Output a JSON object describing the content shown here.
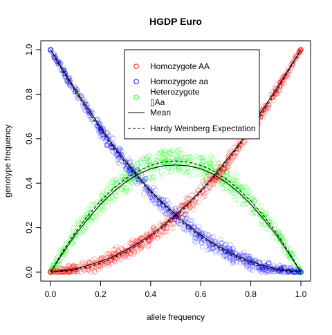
{
  "chart_data": {
    "type": "scatter",
    "title": "HGDP Euro",
    "xlabel": "allele frequency",
    "ylabel": "genotype frequency",
    "xlim": [
      0,
      1
    ],
    "ylim": [
      0,
      1
    ],
    "x_ticks": [
      "0.0",
      "0.2",
      "0.4",
      "0.6",
      "0.8",
      "1.0"
    ],
    "y_ticks": [
      "0.0",
      "0.2",
      "0.4",
      "0.6",
      "0.8",
      "1.0"
    ],
    "grid": false,
    "legend_position": "top-right",
    "series": [
      {
        "name": "Homozygote AA",
        "color": "#ff0000",
        "marker": "open-circle",
        "x": [
          0,
          0.05,
          0.1,
          0.15,
          0.2,
          0.25,
          0.3,
          0.35,
          0.4,
          0.45,
          0.5,
          0.55,
          0.6,
          0.65,
          0.7,
          0.75,
          0.8,
          0.85,
          0.9,
          0.95,
          1
        ],
        "values": [
          0,
          0.005,
          0.012,
          0.025,
          0.042,
          0.067,
          0.093,
          0.125,
          0.162,
          0.205,
          0.25,
          0.302,
          0.357,
          0.42,
          0.49,
          0.562,
          0.642,
          0.728,
          0.812,
          0.905,
          1
        ]
      },
      {
        "name": "Homozygote aa",
        "color": "#0000ff",
        "marker": "open-circle",
        "x": [
          0,
          0.05,
          0.1,
          0.15,
          0.2,
          0.25,
          0.3,
          0.35,
          0.4,
          0.45,
          0.5,
          0.55,
          0.6,
          0.65,
          0.7,
          0.75,
          0.8,
          0.85,
          0.9,
          0.95,
          1
        ],
        "values": [
          1,
          0.905,
          0.812,
          0.728,
          0.642,
          0.562,
          0.49,
          0.42,
          0.357,
          0.302,
          0.25,
          0.205,
          0.162,
          0.125,
          0.093,
          0.067,
          0.042,
          0.025,
          0.012,
          0.005,
          0
        ]
      },
      {
        "name": "Heterozygote",
        "name_line2": "▯Aa",
        "color": "#00ff00",
        "marker": "open-circle",
        "x": [
          0,
          0.05,
          0.1,
          0.15,
          0.2,
          0.25,
          0.3,
          0.35,
          0.4,
          0.45,
          0.5,
          0.55,
          0.6,
          0.65,
          0.7,
          0.75,
          0.8,
          0.85,
          0.9,
          0.95,
          1
        ],
        "values": [
          0,
          0.09,
          0.176,
          0.247,
          0.316,
          0.371,
          0.417,
          0.455,
          0.481,
          0.493,
          0.5,
          0.493,
          0.481,
          0.455,
          0.417,
          0.371,
          0.316,
          0.247,
          0.176,
          0.09,
          0
        ]
      }
    ],
    "lines": [
      {
        "name": "Mean",
        "style": "solid",
        "color": "#000000",
        "x": [
          0,
          0.05,
          0.1,
          0.15,
          0.2,
          0.25,
          0.3,
          0.35,
          0.4,
          0.45,
          0.5,
          0.55,
          0.6,
          0.65,
          0.7,
          0.75,
          0.8,
          0.85,
          0.9,
          0.95,
          1
        ],
        "het_values": [
          0,
          0.087,
          0.17,
          0.24,
          0.305,
          0.36,
          0.405,
          0.44,
          0.465,
          0.478,
          0.482,
          0.478,
          0.465,
          0.44,
          0.405,
          0.36,
          0.305,
          0.24,
          0.17,
          0.087,
          0
        ],
        "aa_values": [
          0,
          0.007,
          0.015,
          0.03,
          0.048,
          0.07,
          0.098,
          0.13,
          0.167,
          0.21,
          0.259,
          0.31,
          0.366,
          0.43,
          0.5,
          0.57,
          0.652,
          0.735,
          0.82,
          0.91,
          1
        ],
        "aa_rev_values": [
          1,
          0.91,
          0.82,
          0.735,
          0.652,
          0.57,
          0.5,
          0.43,
          0.366,
          0.31,
          0.259,
          0.21,
          0.167,
          0.13,
          0.098,
          0.07,
          0.048,
          0.03,
          0.015,
          0.007,
          0
        ]
      },
      {
        "name": "Hardy Weinberg Expectation",
        "style": "dashed",
        "color": "#000000",
        "x": [
          0,
          0.05,
          0.1,
          0.15,
          0.2,
          0.25,
          0.3,
          0.35,
          0.4,
          0.45,
          0.5,
          0.55,
          0.6,
          0.65,
          0.7,
          0.75,
          0.8,
          0.85,
          0.9,
          0.95,
          1
        ],
        "het_values": [
          0,
          0.095,
          0.18,
          0.255,
          0.32,
          0.375,
          0.42,
          0.455,
          0.48,
          0.495,
          0.5,
          0.495,
          0.48,
          0.455,
          0.42,
          0.375,
          0.32,
          0.255,
          0.18,
          0.095,
          0
        ],
        "aa_values": [
          0,
          0.0025,
          0.01,
          0.0225,
          0.04,
          0.0625,
          0.09,
          0.1225,
          0.16,
          0.2025,
          0.25,
          0.3025,
          0.36,
          0.4225,
          0.49,
          0.5625,
          0.64,
          0.7225,
          0.81,
          0.9025,
          1
        ],
        "aa_rev_values": [
          1,
          0.9025,
          0.81,
          0.7225,
          0.64,
          0.5625,
          0.49,
          0.4225,
          0.36,
          0.3025,
          0.25,
          0.2025,
          0.16,
          0.1225,
          0.09,
          0.0625,
          0.04,
          0.0225,
          0.01,
          0.0025,
          0
        ]
      }
    ]
  }
}
